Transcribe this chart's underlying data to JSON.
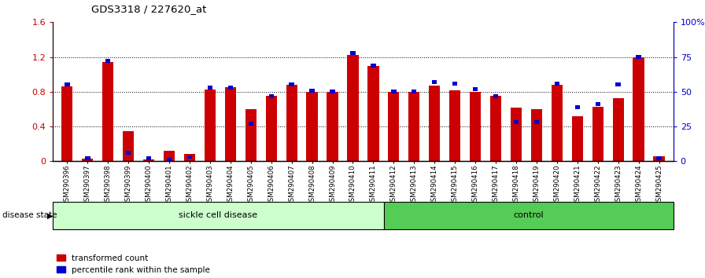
{
  "title": "GDS3318 / 227620_at",
  "samples": [
    "GSM290396",
    "GSM290397",
    "GSM290398",
    "GSM290399",
    "GSM290400",
    "GSM290401",
    "GSM290402",
    "GSM290403",
    "GSM290404",
    "GSM290405",
    "GSM290406",
    "GSM290407",
    "GSM290408",
    "GSM290409",
    "GSM290410",
    "GSM290411",
    "GSM290412",
    "GSM290413",
    "GSM290414",
    "GSM290415",
    "GSM290416",
    "GSM290417",
    "GSM290418",
    "GSM290419",
    "GSM290420",
    "GSM290421",
    "GSM290422",
    "GSM290423",
    "GSM290424",
    "GSM290425"
  ],
  "red_values": [
    0.86,
    0.03,
    1.14,
    0.35,
    0.02,
    0.12,
    0.08,
    0.83,
    0.85,
    0.6,
    0.75,
    0.88,
    0.8,
    0.8,
    1.22,
    1.1,
    0.8,
    0.8,
    0.87,
    0.82,
    0.8,
    0.75,
    0.62,
    0.6,
    0.88,
    0.52,
    0.63,
    0.73,
    1.2,
    0.06
  ],
  "blue_pct": [
    55,
    2,
    72,
    6,
    2,
    1,
    3,
    53,
    53,
    27,
    47,
    55,
    51,
    50,
    78,
    69,
    50,
    50,
    57,
    56,
    52,
    47,
    28,
    28,
    56,
    39,
    41,
    55,
    75,
    2
  ],
  "sickle_count": 16,
  "control_count": 14,
  "sickle_label": "sickle cell disease",
  "control_label": "control",
  "disease_state_label": "disease state",
  "ylim_left": [
    0,
    1.6
  ],
  "ylim_right": [
    0,
    100
  ],
  "left_yticks": [
    0,
    0.4,
    0.8,
    1.2,
    1.6
  ],
  "left_yticklabels": [
    "0",
    "0.4",
    "0.8",
    "1.2",
    "1.6"
  ],
  "right_yticks": [
    0,
    25,
    50,
    75,
    100
  ],
  "right_yticklabels": [
    "0",
    "25",
    "50",
    "75",
    "100%"
  ],
  "red_color": "#CC0000",
  "blue_color": "#0000CC",
  "sickle_bg": "#CCFFCC",
  "control_bg": "#55CC55",
  "bar_width": 0.55,
  "legend_transformed": "transformed count",
  "legend_percentile": "percentile rank within the sample"
}
